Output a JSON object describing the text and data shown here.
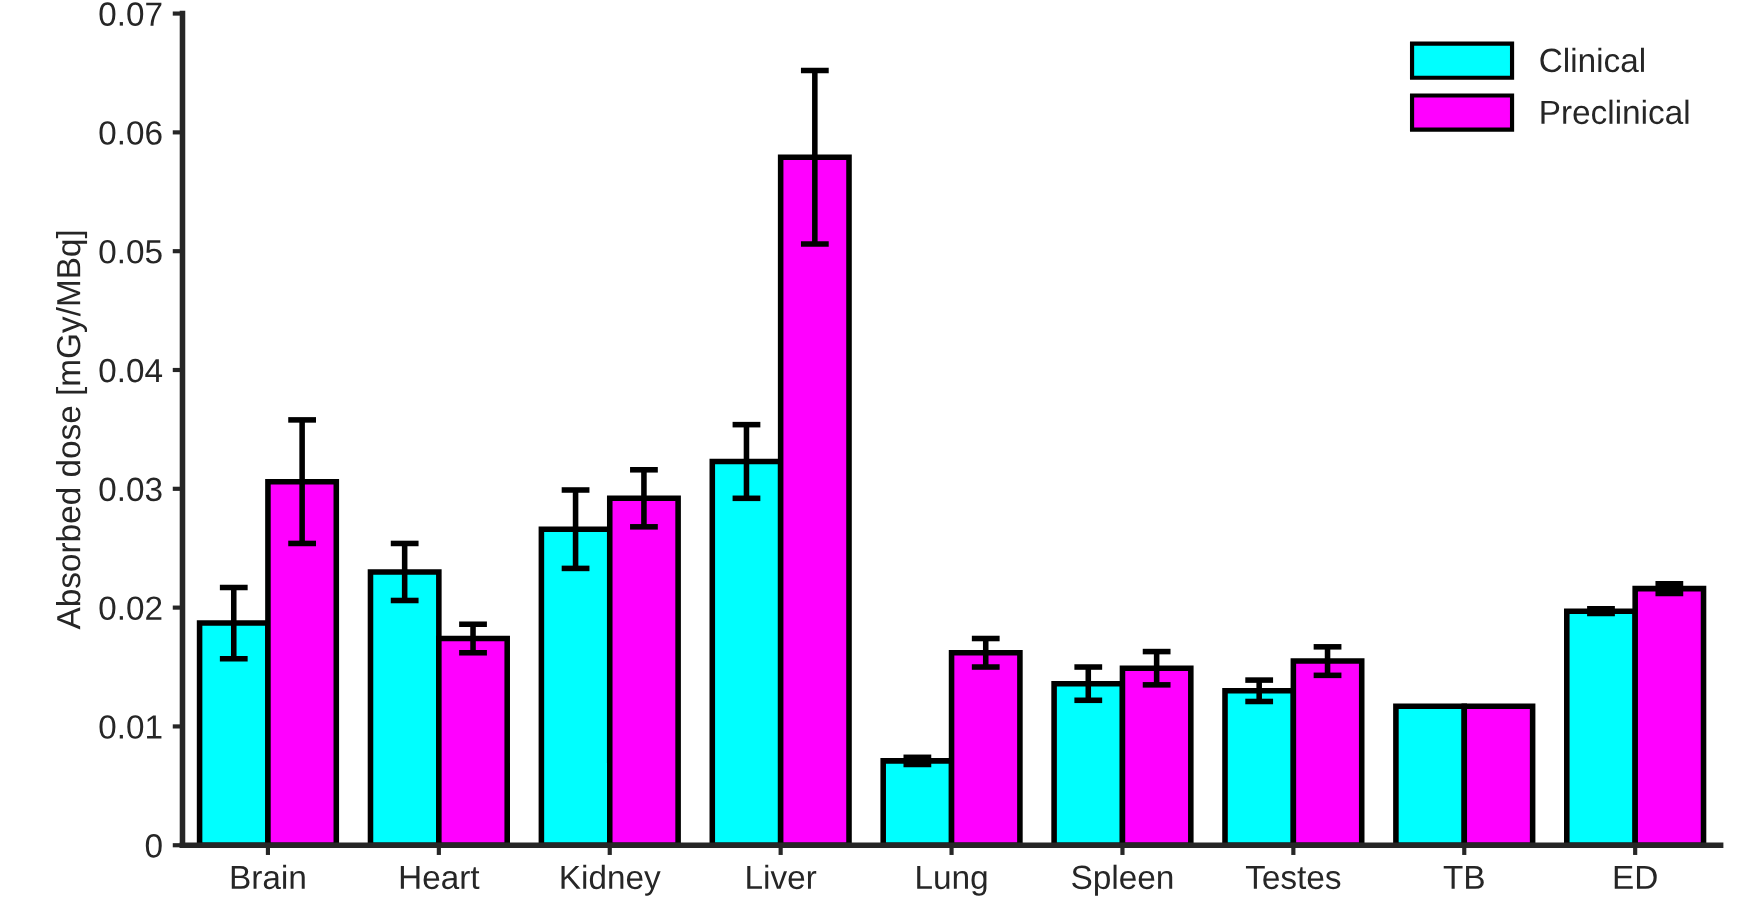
{
  "chart_data": {
    "type": "bar",
    "ylabel": "Absorbed dose [mGy/MBq]",
    "categories": [
      "Brain",
      "Heart",
      "Kidney",
      "Liver",
      "Lung",
      "Spleen",
      "Testes",
      "TB",
      "ED"
    ],
    "series": [
      {
        "name": "Clinical",
        "color": "#00ffff",
        "values": [
          0.0187,
          0.023,
          0.0266,
          0.0323,
          0.0071,
          0.0136,
          0.013,
          0.0117,
          0.0197
        ],
        "errors": [
          0.003,
          0.0024,
          0.0033,
          0.0031,
          0.0003,
          0.0014,
          0.0009,
          null,
          0.0002
        ]
      },
      {
        "name": "Preclinical",
        "color": "#ff00ff",
        "values": [
          0.0306,
          0.0174,
          0.0292,
          0.0579,
          0.0162,
          0.0149,
          0.0155,
          0.0117,
          0.0216
        ],
        "errors": [
          0.0052,
          0.0012,
          0.0024,
          0.0073,
          0.0012,
          0.0014,
          0.0012,
          null,
          0.0004
        ]
      }
    ],
    "ylim": [
      0,
      0.07
    ],
    "yticks": [
      {
        "value": 0,
        "label": "0"
      },
      0.01,
      0.02,
      0.03,
      0.04,
      0.05,
      0.06,
      0.07
    ],
    "grid": false,
    "legend": "top right"
  }
}
